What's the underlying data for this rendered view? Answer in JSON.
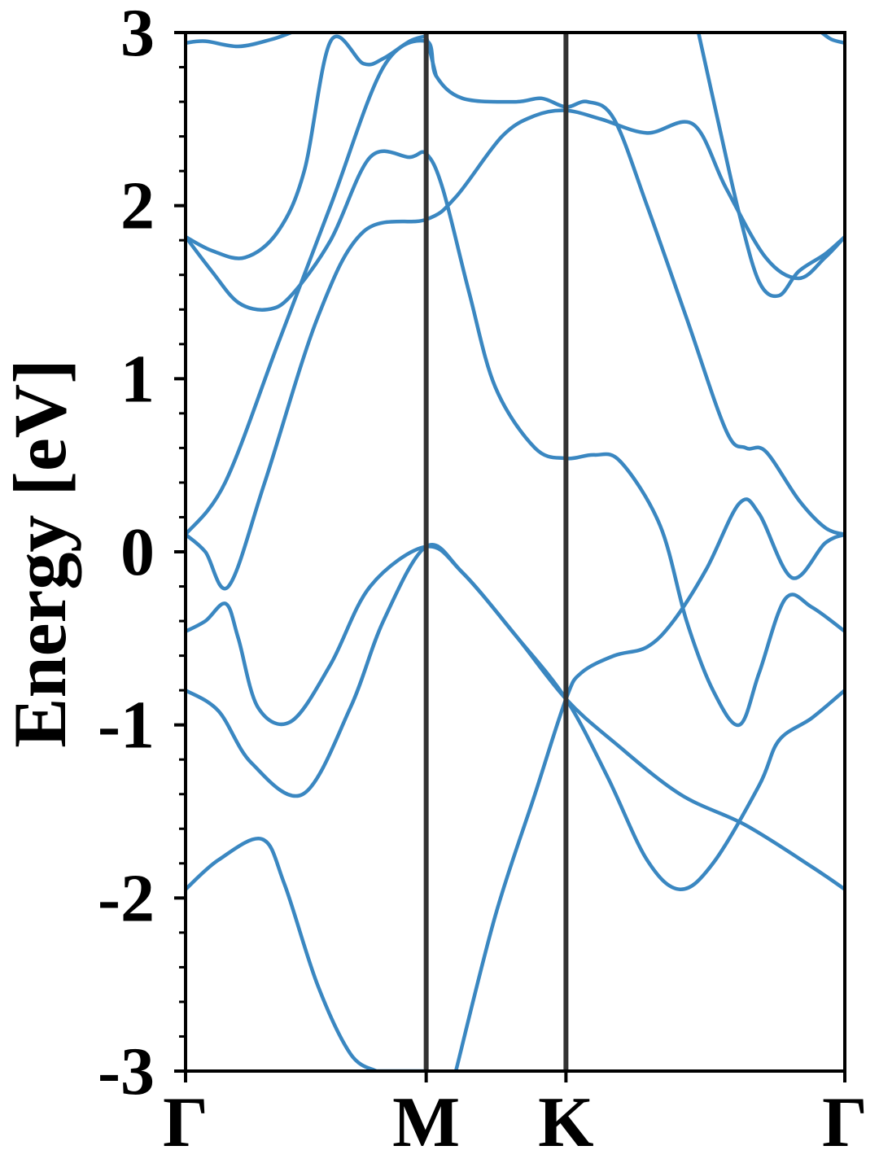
{
  "chart_data": {
    "type": "line",
    "title": "",
    "xlabel": "",
    "ylabel": "Energy [eV]",
    "ylim": [
      -3,
      3
    ],
    "xlim": [
      0,
      1
    ],
    "yticks": [
      -3,
      -2,
      -1,
      0,
      1,
      2,
      3
    ],
    "ytick_labels": [
      "-3",
      "-2",
      "-1",
      "0",
      "1",
      "2",
      "3"
    ],
    "minor_ytick_step": 0.2,
    "high_symmetry_points": [
      {
        "label": "Γ",
        "x": 0.0
      },
      {
        "label": "M",
        "x": 0.365
      },
      {
        "label": "K",
        "x": 0.577
      },
      {
        "label": "Γ",
        "x": 1.0
      }
    ],
    "grid": false,
    "legend": "none",
    "colors": {
      "band": "#3a87c1",
      "kline": "#333333",
      "axis": "#000000"
    },
    "series": [
      {
        "values": [
          [
            0.0,
            -1.95
          ],
          [
            0.05,
            -1.78
          ],
          [
            0.116,
            -1.66
          ],
          [
            0.15,
            -1.92
          ],
          [
            0.2,
            -2.5
          ],
          [
            0.25,
            -2.9
          ],
          [
            0.289,
            -3.0
          ]
        ]
      },
      {
        "values": [
          [
            0.0,
            -0.8
          ],
          [
            0.05,
            -0.92
          ],
          [
            0.1,
            -1.22
          ],
          [
            0.178,
            -1.4
          ],
          [
            0.25,
            -0.9
          ],
          [
            0.3,
            -0.4
          ],
          [
            0.365,
            0.03
          ],
          [
            0.42,
            -0.12
          ],
          [
            0.5,
            -0.48
          ],
          [
            0.577,
            -0.85
          ],
          [
            0.65,
            -1.1
          ],
          [
            0.75,
            -1.4
          ],
          [
            0.85,
            -1.58
          ],
          [
            0.95,
            -1.82
          ],
          [
            1.0,
            -1.95
          ]
        ]
      },
      {
        "values": [
          [
            0.0,
            -0.46
          ],
          [
            0.03,
            -0.4
          ],
          [
            0.061,
            -0.3
          ],
          [
            0.08,
            -0.5
          ],
          [
            0.11,
            -0.9
          ],
          [
            0.16,
            -0.98
          ],
          [
            0.22,
            -0.65
          ],
          [
            0.28,
            -0.2
          ],
          [
            0.365,
            0.03
          ],
          [
            0.42,
            -0.12
          ],
          [
            0.5,
            -0.48
          ],
          [
            0.577,
            -0.85
          ],
          [
            0.64,
            -1.3
          ],
          [
            0.7,
            -1.78
          ],
          [
            0.75,
            -1.95
          ],
          [
            0.8,
            -1.8
          ],
          [
            0.87,
            -1.35
          ],
          [
            0.9,
            -1.09
          ],
          [
            0.95,
            -0.96
          ],
          [
            1.0,
            -0.8
          ]
        ]
      },
      {
        "values": [
          [
            0.0,
            0.1
          ],
          [
            0.03,
            0.0
          ],
          [
            0.065,
            -0.2
          ],
          [
            0.12,
            0.4
          ],
          [
            0.2,
            1.35
          ],
          [
            0.27,
            1.85
          ],
          [
            0.365,
            1.92
          ],
          [
            0.41,
            2.05
          ],
          [
            0.48,
            2.4
          ],
          [
            0.53,
            2.52
          ],
          [
            0.577,
            2.55
          ],
          [
            0.63,
            2.5
          ],
          [
            0.7,
            2.42
          ],
          [
            0.77,
            2.47
          ],
          [
            0.82,
            2.1
          ],
          [
            0.88,
            1.7
          ],
          [
            0.93,
            1.58
          ],
          [
            0.97,
            1.7
          ],
          [
            1.0,
            1.82
          ]
        ]
      },
      {
        "values": [
          [
            0.0,
            0.1
          ],
          [
            0.06,
            0.4
          ],
          [
            0.14,
            1.2
          ],
          [
            0.22,
            2.0
          ],
          [
            0.3,
            2.8
          ],
          [
            0.365,
            2.95
          ],
          [
            0.38,
            2.75
          ],
          [
            0.42,
            2.62
          ],
          [
            0.5,
            2.6
          ],
          [
            0.54,
            2.62
          ],
          [
            0.577,
            2.57
          ],
          [
            0.61,
            2.6
          ],
          [
            0.65,
            2.5
          ],
          [
            0.7,
            2.0
          ],
          [
            0.76,
            1.35
          ],
          [
            0.82,
            0.7
          ],
          [
            0.85,
            0.6
          ],
          [
            0.88,
            0.58
          ],
          [
            0.93,
            0.3
          ],
          [
            0.97,
            0.14
          ],
          [
            1.0,
            0.1
          ]
        ]
      },
      {
        "values": [
          [
            0.0,
            1.82
          ],
          [
            0.04,
            1.62
          ],
          [
            0.08,
            1.44
          ],
          [
            0.124,
            1.4
          ],
          [
            0.16,
            1.48
          ],
          [
            0.22,
            1.8
          ],
          [
            0.28,
            2.28
          ],
          [
            0.34,
            2.28
          ],
          [
            0.365,
            2.3
          ],
          [
            0.39,
            2.1
          ],
          [
            0.43,
            1.5
          ],
          [
            0.47,
            0.95
          ],
          [
            0.53,
            0.6
          ],
          [
            0.577,
            0.54
          ],
          [
            0.62,
            0.56
          ],
          [
            0.66,
            0.52
          ],
          [
            0.72,
            0.15
          ],
          [
            0.76,
            -0.4
          ],
          [
            0.8,
            -0.8
          ],
          [
            0.84,
            -1.0
          ],
          [
            0.87,
            -0.7
          ],
          [
            0.91,
            -0.27
          ],
          [
            0.95,
            -0.32
          ],
          [
            1.0,
            -0.46
          ]
        ]
      },
      {
        "values": [
          [
            0.0,
            1.82
          ],
          [
            0.04,
            1.74
          ],
          [
            0.09,
            1.7
          ],
          [
            0.14,
            1.85
          ],
          [
            0.18,
            2.2
          ],
          [
            0.22,
            2.95
          ],
          [
            0.27,
            2.82
          ],
          [
            0.3,
            2.85
          ],
          [
            0.34,
            2.95
          ],
          [
            0.365,
            2.98
          ]
        ]
      },
      {
        "values": [
          [
            0.365,
            2.98
          ],
          [
            0.38,
            2.75
          ]
        ]
      },
      {
        "values": [
          [
            0.0,
            2.94
          ],
          [
            0.03,
            2.95
          ],
          [
            0.08,
            2.92
          ],
          [
            0.13,
            2.96
          ],
          [
            0.16,
            3.0
          ]
        ]
      },
      {
        "values": [
          [
            0.29,
            -3.0
          ],
          [
            0.36,
            -3.0
          ]
        ]
      },
      {
        "values": [
          [
            0.41,
            -3.0
          ],
          [
            0.47,
            -2.1
          ],
          [
            0.53,
            -1.4
          ],
          [
            0.577,
            -0.85
          ],
          [
            0.6,
            -0.7
          ],
          [
            0.65,
            -0.6
          ],
          [
            0.7,
            -0.55
          ],
          [
            0.74,
            -0.4
          ],
          [
            0.79,
            -0.1
          ],
          [
            0.84,
            0.28
          ],
          [
            0.87,
            0.22
          ],
          [
            0.92,
            -0.15
          ],
          [
            0.97,
            0.05
          ],
          [
            1.0,
            0.1
          ]
        ]
      },
      {
        "values": [
          [
            0.778,
            3.0
          ],
          [
            0.81,
            2.45
          ],
          [
            0.84,
            1.95
          ],
          [
            0.87,
            1.56
          ],
          [
            0.9,
            1.48
          ],
          [
            0.93,
            1.62
          ],
          [
            0.97,
            1.72
          ],
          [
            1.0,
            1.82
          ]
        ]
      },
      {
        "values": [
          [
            0.965,
            3.0
          ],
          [
            0.98,
            2.96
          ],
          [
            1.0,
            2.94
          ]
        ]
      }
    ]
  }
}
